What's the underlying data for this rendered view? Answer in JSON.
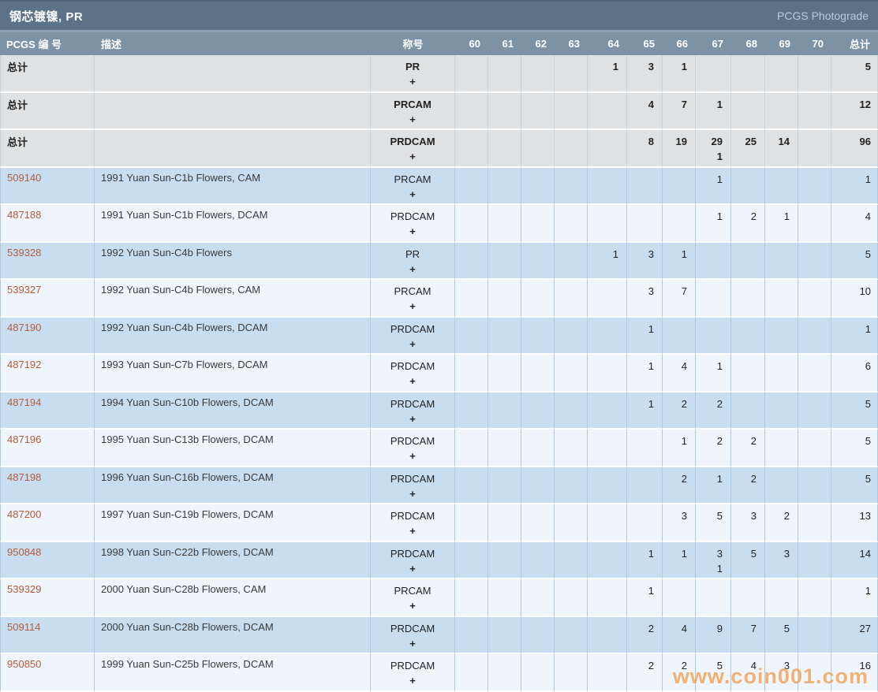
{
  "title_bar": {
    "title": "钢芯镀镍, PR",
    "right_link": "PCGS Photograde"
  },
  "table": {
    "columns": {
      "pcgs_no": "PCGS 编 号",
      "description": "描述",
      "designation": "称号",
      "grades": [
        "60",
        "61",
        "62",
        "63",
        "64",
        "65",
        "66",
        "67",
        "68",
        "69",
        "70"
      ],
      "total": "总计"
    },
    "rows": [
      {
        "type": "total",
        "pcgs_no": "总计",
        "description": "",
        "designation": "PR",
        "plus_label": "+",
        "values": [
          "",
          "",
          "",
          "",
          "1",
          "3",
          "1",
          "",
          "",
          "",
          ""
        ],
        "plus_values": [
          "",
          "",
          "",
          "",
          "",
          "",
          "",
          "",
          "",
          "",
          ""
        ],
        "total": "5"
      },
      {
        "type": "total",
        "pcgs_no": "总计",
        "description": "",
        "designation": "PRCAM",
        "plus_label": "+",
        "values": [
          "",
          "",
          "",
          "",
          "",
          "4",
          "7",
          "1",
          "",
          "",
          ""
        ],
        "plus_values": [
          "",
          "",
          "",
          "",
          "",
          "",
          "",
          "",
          "",
          "",
          ""
        ],
        "total": "12"
      },
      {
        "type": "total",
        "pcgs_no": "总计",
        "description": "",
        "designation": "PRDCAM",
        "plus_label": "+",
        "values": [
          "",
          "",
          "",
          "",
          "",
          "8",
          "19",
          "29",
          "25",
          "14",
          ""
        ],
        "plus_values": [
          "",
          "",
          "",
          "",
          "",
          "",
          "",
          "1",
          "",
          "",
          ""
        ],
        "total": "96"
      },
      {
        "type": "data",
        "pcgs_no": "509140",
        "description": "1991 Yuan Sun-C1b Flowers, CAM",
        "designation": "PRCAM",
        "plus_label": "+",
        "values": [
          "",
          "",
          "",
          "",
          "",
          "",
          "",
          "1",
          "",
          "",
          ""
        ],
        "plus_values": [
          "",
          "",
          "",
          "",
          "",
          "",
          "",
          "",
          "",
          "",
          ""
        ],
        "total": "1"
      },
      {
        "type": "data",
        "pcgs_no": "487188",
        "description": "1991 Yuan Sun-C1b Flowers, DCAM",
        "designation": "PRDCAM",
        "plus_label": "+",
        "values": [
          "",
          "",
          "",
          "",
          "",
          "",
          "",
          "1",
          "2",
          "1",
          ""
        ],
        "plus_values": [
          "",
          "",
          "",
          "",
          "",
          "",
          "",
          "",
          "",
          "",
          ""
        ],
        "total": "4"
      },
      {
        "type": "data",
        "pcgs_no": "539328",
        "description": "1992 Yuan Sun-C4b Flowers",
        "designation": "PR",
        "plus_label": "+",
        "values": [
          "",
          "",
          "",
          "",
          "1",
          "3",
          "1",
          "",
          "",
          "",
          ""
        ],
        "plus_values": [
          "",
          "",
          "",
          "",
          "",
          "",
          "",
          "",
          "",
          "",
          ""
        ],
        "total": "5"
      },
      {
        "type": "data",
        "pcgs_no": "539327",
        "description": "1992 Yuan Sun-C4b Flowers, CAM",
        "designation": "PRCAM",
        "plus_label": "+",
        "values": [
          "",
          "",
          "",
          "",
          "",
          "3",
          "7",
          "",
          "",
          "",
          ""
        ],
        "plus_values": [
          "",
          "",
          "",
          "",
          "",
          "",
          "",
          "",
          "",
          "",
          ""
        ],
        "total": "10"
      },
      {
        "type": "data",
        "pcgs_no": "487190",
        "description": "1992 Yuan Sun-C4b Flowers, DCAM",
        "designation": "PRDCAM",
        "plus_label": "+",
        "values": [
          "",
          "",
          "",
          "",
          "",
          "1",
          "",
          "",
          "",
          "",
          ""
        ],
        "plus_values": [
          "",
          "",
          "",
          "",
          "",
          "",
          "",
          "",
          "",
          "",
          ""
        ],
        "total": "1"
      },
      {
        "type": "data",
        "pcgs_no": "487192",
        "description": "1993 Yuan Sun-C7b Flowers, DCAM",
        "designation": "PRDCAM",
        "plus_label": "+",
        "values": [
          "",
          "",
          "",
          "",
          "",
          "1",
          "4",
          "1",
          "",
          "",
          ""
        ],
        "plus_values": [
          "",
          "",
          "",
          "",
          "",
          "",
          "",
          "",
          "",
          "",
          ""
        ],
        "total": "6"
      },
      {
        "type": "data",
        "pcgs_no": "487194",
        "description": "1994 Yuan Sun-C10b Flowers, DCAM",
        "designation": "PRDCAM",
        "plus_label": "+",
        "values": [
          "",
          "",
          "",
          "",
          "",
          "1",
          "2",
          "2",
          "",
          "",
          ""
        ],
        "plus_values": [
          "",
          "",
          "",
          "",
          "",
          "",
          "",
          "",
          "",
          "",
          ""
        ],
        "total": "5"
      },
      {
        "type": "data",
        "pcgs_no": "487196",
        "description": "1995 Yuan Sun-C13b Flowers, DCAM",
        "designation": "PRDCAM",
        "plus_label": "+",
        "values": [
          "",
          "",
          "",
          "",
          "",
          "",
          "1",
          "2",
          "2",
          "",
          ""
        ],
        "plus_values": [
          "",
          "",
          "",
          "",
          "",
          "",
          "",
          "",
          "",
          "",
          ""
        ],
        "total": "5"
      },
      {
        "type": "data",
        "pcgs_no": "487198",
        "description": "1996 Yuan Sun-C16b Flowers, DCAM",
        "designation": "PRDCAM",
        "plus_label": "+",
        "values": [
          "",
          "",
          "",
          "",
          "",
          "",
          "2",
          "1",
          "2",
          "",
          ""
        ],
        "plus_values": [
          "",
          "",
          "",
          "",
          "",
          "",
          "",
          "",
          "",
          "",
          ""
        ],
        "total": "5"
      },
      {
        "type": "data",
        "pcgs_no": "487200",
        "description": "1997 Yuan Sun-C19b Flowers, DCAM",
        "designation": "PRDCAM",
        "plus_label": "+",
        "values": [
          "",
          "",
          "",
          "",
          "",
          "",
          "3",
          "5",
          "3",
          "2",
          ""
        ],
        "plus_values": [
          "",
          "",
          "",
          "",
          "",
          "",
          "",
          "",
          "",
          "",
          ""
        ],
        "total": "13"
      },
      {
        "type": "data",
        "pcgs_no": "950848",
        "description": "1998 Yuan Sun-C22b Flowers, DCAM",
        "designation": "PRDCAM",
        "plus_label": "+",
        "values": [
          "",
          "",
          "",
          "",
          "",
          "1",
          "1",
          "3",
          "5",
          "3",
          ""
        ],
        "plus_values": [
          "",
          "",
          "",
          "",
          "",
          "",
          "",
          "1",
          "",
          "",
          ""
        ],
        "total": "14"
      },
      {
        "type": "data",
        "pcgs_no": "539329",
        "description": "2000 Yuan Sun-C28b Flowers, CAM",
        "designation": "PRCAM",
        "plus_label": "+",
        "values": [
          "",
          "",
          "",
          "",
          "",
          "1",
          "",
          "",
          "",
          "",
          ""
        ],
        "plus_values": [
          "",
          "",
          "",
          "",
          "",
          "",
          "",
          "",
          "",
          "",
          ""
        ],
        "total": "1"
      },
      {
        "type": "data",
        "pcgs_no": "509114",
        "description": "2000 Yuan Sun-C28b Flowers, DCAM",
        "designation": "PRDCAM",
        "plus_label": "+",
        "values": [
          "",
          "",
          "",
          "",
          "",
          "2",
          "4",
          "9",
          "7",
          "5",
          ""
        ],
        "plus_values": [
          "",
          "",
          "",
          "",
          "",
          "",
          "",
          "",
          "",
          "",
          ""
        ],
        "total": "27"
      },
      {
        "type": "data",
        "pcgs_no": "950850",
        "description": "1999 Yuan Sun-C25b Flowers, DCAM",
        "designation": "PRDCAM",
        "plus_label": "+",
        "values": [
          "",
          "",
          "",
          "",
          "",
          "2",
          "2",
          "5",
          "4",
          "3",
          ""
        ],
        "plus_values": [
          "",
          "",
          "",
          "",
          "",
          "",
          "",
          "",
          "",
          "",
          ""
        ],
        "total": "16"
      }
    ]
  },
  "watermark": "www.coin001.com",
  "colors": {
    "title_bar_bg": "#5b7287",
    "header_row_bg": "#7d92a4",
    "total_row_bg": "#e0e1e2",
    "row_blue_bg": "#c9ddf0",
    "row_light_bg": "#eff5fa",
    "grid_line": "#aec8dd",
    "pcgs_number_link": "#b05c3c",
    "photograde_link": "#b9cde0",
    "watermark_orange": "#f0953e"
  }
}
